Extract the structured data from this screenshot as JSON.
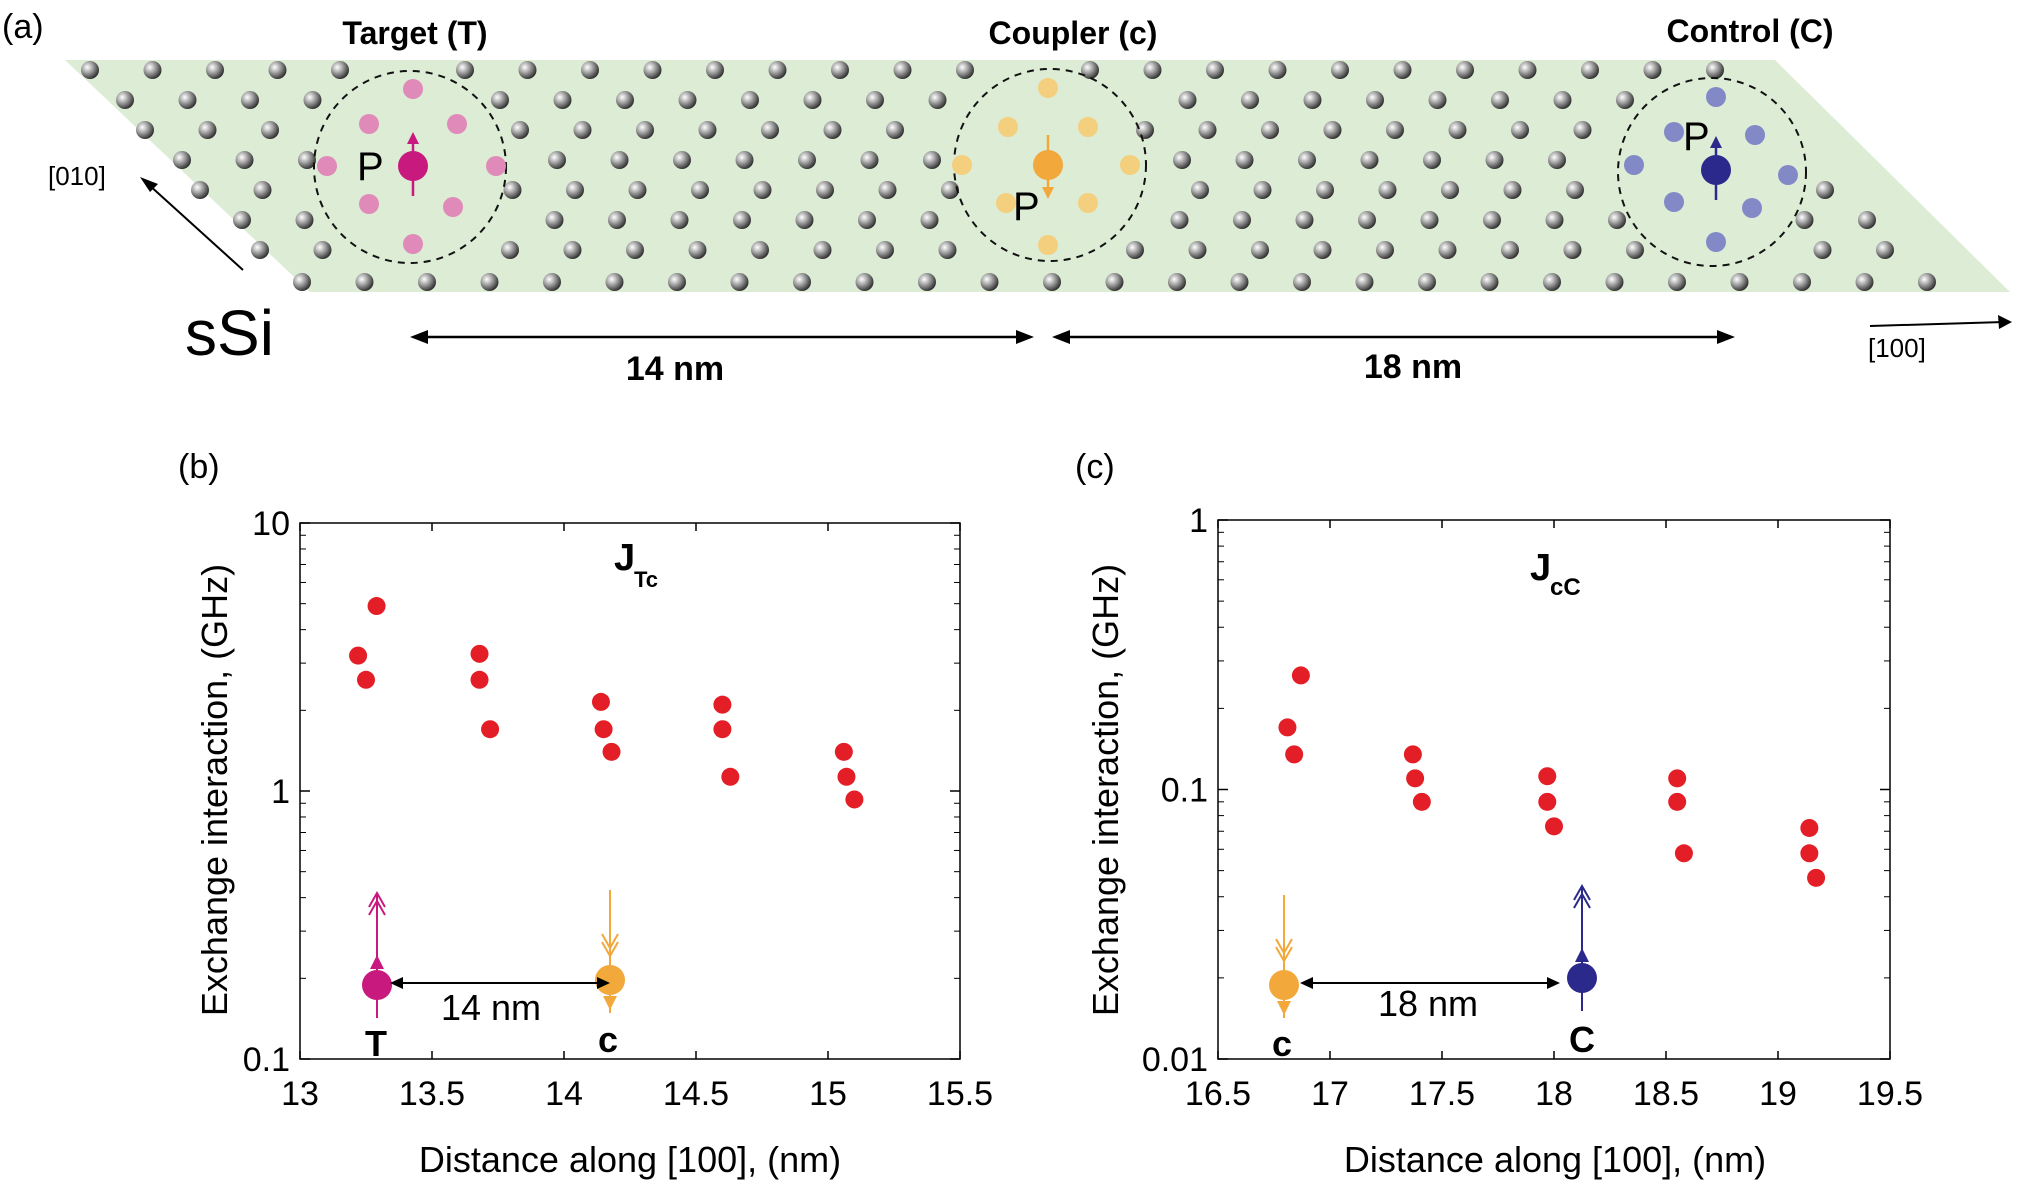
{
  "panel_a": {
    "panel_label": "(a)",
    "material_label": "sSi",
    "axis_010_label": "[010]",
    "axis_100_label": "[100]",
    "sites": [
      {
        "title": "Target (T)",
        "donor_label": "P",
        "spin": "up",
        "color": "#c8197e",
        "halo_color": "#e08ab9"
      },
      {
        "title": "Coupler (c)",
        "donor_label": "P",
        "spin": "down",
        "color": "#f2a83b",
        "halo_color": "#f3cf7e"
      },
      {
        "title": "Control (C)",
        "donor_label": "P",
        "spin": "up",
        "color": "#2b2a8c",
        "halo_color": "#8389c7"
      }
    ],
    "distances": [
      "14 nm",
      "18 nm"
    ],
    "plane_color": "#dcecd5"
  },
  "chart_data": [
    {
      "type": "scatter",
      "panel_label": "(b)",
      "title": "J",
      "title_sub": "Tc",
      "xlabel": "Distance along [100], (nm)",
      "ylabel": "Exchange interaction, (GHz)",
      "xscale": "linear",
      "yscale": "log",
      "xlim": [
        13,
        15.5
      ],
      "ylim": [
        0.1,
        10
      ],
      "xticks": [
        13,
        13.5,
        14,
        14.5,
        15,
        15.5
      ],
      "xtick_labels": [
        "13",
        "13.5",
        "14",
        "14.5",
        "15",
        "15.5"
      ],
      "yticks": [
        0.1,
        1,
        10
      ],
      "ytick_labels": [
        "0.1",
        "1",
        "10"
      ],
      "marker_color": "#e41e26",
      "series": [
        {
          "name": "JTc",
          "points": [
            {
              "x": 13.22,
              "y": 3.2
            },
            {
              "x": 13.25,
              "y": 2.6
            },
            {
              "x": 13.29,
              "y": 4.9
            },
            {
              "x": 13.68,
              "y": 3.25
            },
            {
              "x": 13.68,
              "y": 2.6
            },
            {
              "x": 13.72,
              "y": 1.7
            },
            {
              "x": 14.14,
              "y": 2.15
            },
            {
              "x": 14.15,
              "y": 1.7
            },
            {
              "x": 14.18,
              "y": 1.4
            },
            {
              "x": 14.6,
              "y": 2.1
            },
            {
              "x": 14.6,
              "y": 1.7
            },
            {
              "x": 14.63,
              "y": 1.13
            },
            {
              "x": 15.06,
              "y": 1.4
            },
            {
              "x": 15.07,
              "y": 1.13
            },
            {
              "x": 15.1,
              "y": 0.93
            }
          ]
        }
      ],
      "inset": {
        "left_label": "T",
        "left_color": "#c8197e",
        "left_spin": "up",
        "right_label": "c",
        "right_color": "#f2a83b",
        "right_spin": "down",
        "distance_label": "14 nm"
      }
    },
    {
      "type": "scatter",
      "panel_label": "(c)",
      "title": "J",
      "title_sub": "cC",
      "xlabel": "Distance along [100], (nm)",
      "ylabel": "Exchange interaction, (GHz)",
      "xscale": "linear",
      "yscale": "log",
      "xlim": [
        16.5,
        19.5
      ],
      "ylim": [
        0.01,
        1
      ],
      "xticks": [
        16.5,
        17,
        17.5,
        18,
        18.5,
        19,
        19.5
      ],
      "xtick_labels": [
        "16.5",
        "17",
        "17.5",
        "18",
        "18.5",
        "19",
        "19.5"
      ],
      "yticks": [
        0.01,
        0.1,
        1
      ],
      "ytick_labels": [
        "0.01",
        "0.1",
        "1"
      ],
      "marker_color": "#e41e26",
      "series": [
        {
          "name": "JcC",
          "points": [
            {
              "x": 16.81,
              "y": 0.17
            },
            {
              "x": 16.84,
              "y": 0.135
            },
            {
              "x": 16.87,
              "y": 0.265
            },
            {
              "x": 17.37,
              "y": 0.135
            },
            {
              "x": 17.38,
              "y": 0.11
            },
            {
              "x": 17.41,
              "y": 0.09
            },
            {
              "x": 17.97,
              "y": 0.112
            },
            {
              "x": 17.97,
              "y": 0.09
            },
            {
              "x": 18.0,
              "y": 0.073
            },
            {
              "x": 18.55,
              "y": 0.11
            },
            {
              "x": 18.55,
              "y": 0.09
            },
            {
              "x": 18.58,
              "y": 0.058
            },
            {
              "x": 19.14,
              "y": 0.072
            },
            {
              "x": 19.14,
              "y": 0.058
            },
            {
              "x": 19.17,
              "y": 0.047
            }
          ]
        }
      ],
      "inset": {
        "left_label": "c",
        "left_color": "#f2a83b",
        "left_spin": "down",
        "right_label": "C",
        "right_color": "#2b2a8c",
        "right_spin": "up",
        "distance_label": "18 nm"
      }
    }
  ]
}
